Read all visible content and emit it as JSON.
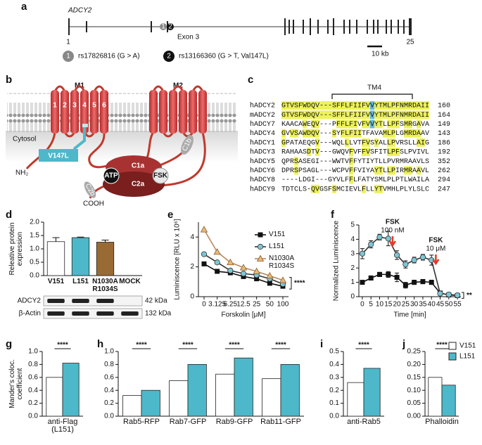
{
  "gene": {
    "panel": "a",
    "name": "ADCY2",
    "first_exon": "1",
    "exon3": "Exon 3",
    "last_exon": "25",
    "snps": [
      {
        "id": "1",
        "text": "rs17826816 (G > A)"
      },
      {
        "id": "2",
        "text": "rs13166360 (G > T, Val147L)"
      }
    ],
    "scale": "10 kb"
  },
  "diagram": {
    "panel": "b",
    "domains": [
      "M1",
      "M2"
    ],
    "helices": [
      "1",
      "2",
      "3",
      "4",
      "5",
      "6"
    ],
    "cytosol": "Cytosol",
    "mutation": "V147L",
    "n_term": "NH₂",
    "c_term": "COOH",
    "c1a": "C1a",
    "c2a": "C2a",
    "c1b": "C1b",
    "c2b": "C2b",
    "atp": "ATP",
    "fsk": "FSK"
  },
  "alignment": {
    "panel": "c",
    "region": "TM4",
    "rows": [
      {
        "name": "hADCY2",
        "seq": "GTVSFWDQV---SFFLFIIFVVYTMLPFNMRDAII",
        "end": "160"
      },
      {
        "name": "mADCY2",
        "seq": "GTVSFWDQV---SFFLFIIFVVYTMLPFNMRDAII",
        "end": "164"
      },
      {
        "name": "hADCY7",
        "seq": "KAACAWEQV---PFFLFIVFVVYTLLPFSMRGAVA",
        "end": "149"
      },
      {
        "name": "hADCY4",
        "seq": "GVVSAWDQV---SYFLFIITFAVAMLPLGMRDAAV",
        "end": "143"
      },
      {
        "name": "hADCY1",
        "seq": "GPATAEQGV---WQLLLVTFVSYALLPVRSLLAIG",
        "end": "186"
      },
      {
        "name": "hADCY3",
        "seq": "RAHAASDTV---GWQVFVFFVSFITLPFSLPVIVL",
        "end": "192"
      },
      {
        "name": "hADCY5",
        "seq": "QPRSASEGI---WWTVFFYTIYTLLPVRMRAAVLS",
        "end": "352"
      },
      {
        "name": "hADCY6",
        "seq": "DPRSPSAGL---WCPVFFVIYAYTLLPIRMRAAVL",
        "end": "262"
      },
      {
        "name": "hADCY8",
        "seq": "----LDGI---GYVLFFLFATYSMLPLPTLWAILA",
        "end": "294"
      },
      {
        "name": "hADCY9",
        "seq": "TDTCLS-QVGSFSMCIEVLFLLYTVMHLPLYLSLC",
        "end": "247"
      }
    ]
  },
  "chart_data": [
    {
      "type": "bar",
      "panel": "d",
      "ylabel": "Releative protein expression",
      "categories": [
        "V151",
        "L151",
        "N1030A R1034S",
        "MOCK"
      ],
      "values": [
        1.27,
        1.42,
        1.25,
        null
      ],
      "errors": [
        0.15,
        0.02,
        0.08,
        null
      ],
      "colors": [
        "#ffffff",
        "#4db8c9",
        "#9a6a34",
        null
      ],
      "ylim": [
        0,
        2
      ],
      "yticks": [
        {
          "value": 0,
          "label": "0.0"
        },
        {
          "value": 0.5,
          "label": "0.5"
        },
        {
          "value": 1,
          "label": "1.0"
        },
        {
          "value": 1.5,
          "label": "1.5"
        },
        {
          "value": 2,
          "label": "2.0"
        }
      ],
      "blot": [
        {
          "protein": "ADCY2",
          "size": "42 kDa"
        },
        {
          "protein": "β-Actin",
          "size": "132 kDa"
        }
      ]
    },
    {
      "type": "line",
      "panel": "e",
      "ylabel": "Luminiscence [RLU x 10⁶]",
      "xlabel": "Forskolin [μM]",
      "categories": [
        "0",
        "3.125",
        "6.25",
        "12.5",
        "25",
        "50",
        "100"
      ],
      "series": [
        {
          "name": "V151",
          "color": "#111111",
          "line_color": "#111111",
          "marker": "square",
          "values": [
            2.2,
            1.7,
            1.6,
            1.35,
            1.2,
            0.9,
            0.7
          ]
        },
        {
          "name": "L151",
          "color": "#7cc6d6",
          "line_color": "#333333",
          "marker": "circle",
          "values": [
            2.85,
            2.3,
            1.75,
            1.55,
            1.45,
            1.2,
            0.85
          ]
        },
        {
          "name": "N1030A R1034S",
          "color": "#e8b97a",
          "line_color": "#b8895a",
          "marker": "triangle",
          "values": [
            4.5,
            3.0,
            2.3,
            1.95,
            1.7,
            1.4,
            1.1
          ]
        }
      ],
      "ylim": [
        0,
        5
      ],
      "yticks": [
        0,
        2,
        4
      ],
      "significance": "****"
    },
    {
      "type": "line",
      "panel": "f",
      "ylabel": "Normalized Luminiscence",
      "xlabel": "Time [min]",
      "x": [
        0,
        5,
        10,
        15,
        20,
        25,
        30,
        35,
        40,
        45,
        50,
        55
      ],
      "series": [
        {
          "color": "#111111",
          "line_color": "#111111",
          "marker": "square",
          "values": [
            1.0,
            1.3,
            1.55,
            1.55,
            1.35,
            0.8,
            1.0,
            1.05,
            1.0,
            0.25,
            0.12,
            0.08
          ],
          "errors": [
            0.1,
            0.15,
            0.15,
            0.2,
            0.3,
            0.2,
            0.15,
            0.15,
            0.15,
            0.05,
            0.03,
            0.03
          ]
        },
        {
          "color": "#7cc6d6",
          "line_color": "#333333",
          "marker": "circle",
          "values": [
            3.0,
            3.65,
            4.15,
            4.05,
            2.9,
            2.25,
            2.55,
            2.75,
            2.55,
            0.22,
            0.15,
            0.1
          ],
          "errors": [
            0.35,
            0.25,
            0.2,
            0.5,
            0.3,
            0.25,
            0.2,
            0.2,
            0.35,
            0.05,
            0.03,
            0.03
          ]
        }
      ],
      "xlim": [
        -2,
        57
      ],
      "xticks": [
        0,
        5,
        10,
        15,
        20,
        25,
        30,
        35,
        40,
        45,
        50,
        55
      ],
      "ylim": [
        0,
        5
      ],
      "yticks": [
        0,
        1,
        2,
        3,
        4,
        5
      ],
      "events": [
        {
          "x": 17.5,
          "label": "FSK",
          "dose": "100 nM"
        },
        {
          "x": 42.5,
          "label": "FSK",
          "dose": "10 μM"
        }
      ],
      "significance": "**"
    },
    {
      "type": "bar",
      "panel": "g",
      "ylabel": "Mander's coloc. coefficient",
      "categories": [
        "anti-Flag (L151)"
      ],
      "series": [
        {
          "color": "#ffffff",
          "values": [
            0.6
          ]
        },
        {
          "color": "#4db8c9",
          "values": [
            0.82
          ]
        }
      ],
      "ylim": [
        0,
        1
      ],
      "yticks": [
        {
          "value": 0,
          "label": "0.0"
        },
        {
          "value": 0.2,
          "label": "0.2"
        },
        {
          "value": 0.4,
          "label": "0.4"
        },
        {
          "value": 0.6,
          "label": "0.6"
        },
        {
          "value": 0.8,
          "label": "0.8"
        },
        {
          "value": 1,
          "label": "1.0"
        }
      ],
      "significance": [
        "****"
      ]
    },
    {
      "type": "bar",
      "panel": "h",
      "categories": [
        "Rab5-RFP",
        "Rab7-GFP",
        "Rab9-GFP",
        "Rab11-GFP"
      ],
      "series": [
        {
          "color": "#ffffff",
          "values": [
            0.32,
            0.55,
            0.65,
            0.58
          ]
        },
        {
          "color": "#4db8c9",
          "values": [
            0.4,
            0.8,
            0.9,
            0.8
          ]
        }
      ],
      "ylim": [
        0,
        1
      ],
      "yticks": [
        {
          "value": 0,
          "label": "0.0"
        },
        {
          "value": 0.2,
          "label": "0.2"
        },
        {
          "value": 0.4,
          "label": "0.4"
        },
        {
          "value": 0.6,
          "label": "0.6"
        },
        {
          "value": 0.8,
          "label": "0.8"
        },
        {
          "value": 1,
          "label": "1.0"
        }
      ],
      "significance": [
        "****",
        "****",
        "****",
        "****"
      ]
    },
    {
      "type": "bar",
      "panel": "i",
      "categories": [
        "anti-Rab5"
      ],
      "series": [
        {
          "color": "#ffffff",
          "values": [
            0.26
          ]
        },
        {
          "color": "#4db8c9",
          "values": [
            0.37
          ]
        }
      ],
      "ylim": [
        0,
        0.5
      ],
      "yticks": [
        {
          "value": 0,
          "label": "0.0"
        },
        0.1,
        0.2,
        0.3,
        0.4,
        0.5
      ],
      "significance": [
        "****"
      ]
    },
    {
      "type": "bar",
      "panel": "j",
      "categories": [
        "Phalloidin"
      ],
      "series": [
        {
          "name": "V151",
          "color": "#ffffff",
          "values": [
            0.15
          ]
        },
        {
          "name": "L151",
          "color": "#4db8c9",
          "values": [
            0.12
          ]
        }
      ],
      "ylim": [
        0,
        0.25
      ],
      "yticks": [
        {
          "value": 0,
          "label": "0.00"
        },
        0.05,
        {
          "value": 0.1,
          "label": "0.10"
        },
        0.15,
        {
          "value": 0.2,
          "label": "0.20"
        },
        0.25
      ],
      "significance": [
        "****"
      ]
    }
  ]
}
